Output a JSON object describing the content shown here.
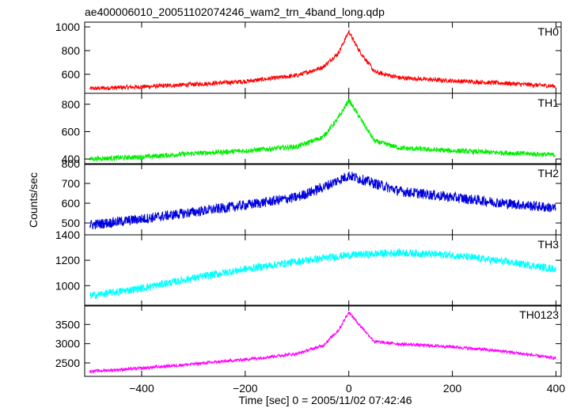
{
  "chart_data": {
    "type": "line",
    "title": "ae400006010_20051102074246_wam2_trn_4band_long.qdp",
    "xlabel": "Time [sec] 0 = 2005/11/02 07:42:46",
    "ylabel": "Counts/sec",
    "xlim": [
      -510,
      410
    ],
    "x_ticks": [
      -400,
      -200,
      0,
      200,
      400
    ],
    "x_tick_labels": [
      "−400",
      "−200",
      "0",
      "200",
      "400"
    ],
    "panels": [
      {
        "name": "TH0",
        "color": "#ff0000",
        "ylim": [
          440,
          1040
        ],
        "y_ticks": [
          600,
          800,
          1000
        ],
        "y_tick_labels": [
          "600",
          "800",
          "1000"
        ],
        "x": [
          -500,
          -400,
          -300,
          -200,
          -100,
          -50,
          -20,
          0,
          20,
          50,
          100,
          200,
          300,
          400
        ],
        "y": [
          480,
          495,
          515,
          540,
          590,
          660,
          780,
          960,
          800,
          620,
          570,
          545,
          525,
          500
        ],
        "noise": 18
      },
      {
        "name": "TH1",
        "color": "#00ee00",
        "ylim": [
          360,
          880
        ],
        "y_ticks": [
          400,
          600,
          800
        ],
        "y_tick_labels": [
          "400",
          "600",
          "800"
        ],
        "x": [
          -500,
          -400,
          -300,
          -200,
          -100,
          -50,
          -20,
          0,
          20,
          50,
          100,
          200,
          300,
          400
        ],
        "y": [
          400,
          415,
          440,
          460,
          490,
          560,
          700,
          830,
          710,
          530,
          480,
          460,
          445,
          430
        ],
        "noise": 18
      },
      {
        "name": "TH2",
        "color": "#0000dd",
        "ylim": [
          440,
          800
        ],
        "y_ticks": [
          500,
          600,
          700,
          800
        ],
        "y_tick_labels": [
          "500",
          "600",
          "700",
          "800"
        ],
        "x": [
          -500,
          -400,
          -300,
          -200,
          -100,
          -50,
          0,
          50,
          100,
          200,
          300,
          400
        ],
        "y": [
          490,
          520,
          555,
          590,
          630,
          680,
          740,
          700,
          660,
          630,
          600,
          575
        ],
        "noise": 26
      },
      {
        "name": "TH3",
        "color": "#00ffff",
        "ylim": [
          840,
          1400
        ],
        "y_ticks": [
          1000,
          1200,
          1400
        ],
        "y_tick_labels": [
          "1000",
          "1200",
          "1400"
        ],
        "x": [
          -500,
          -400,
          -300,
          -200,
          -100,
          0,
          100,
          200,
          300,
          400
        ],
        "y": [
          920,
          980,
          1060,
          1130,
          1190,
          1240,
          1260,
          1240,
          1190,
          1130
        ],
        "noise": 30
      },
      {
        "name": "TH0123",
        "color": "#ff00ff",
        "ylim": [
          2150,
          4000
        ],
        "y_ticks": [
          2500,
          3000,
          3500
        ],
        "y_tick_labels": [
          "2500",
          "3000",
          "3500"
        ],
        "x": [
          -500,
          -400,
          -300,
          -200,
          -100,
          -50,
          -20,
          0,
          20,
          50,
          100,
          200,
          300,
          400
        ],
        "y": [
          2280,
          2360,
          2470,
          2590,
          2740,
          2950,
          3350,
          3820,
          3500,
          3050,
          2990,
          2920,
          2800,
          2620
        ],
        "noise": 40
      }
    ]
  }
}
